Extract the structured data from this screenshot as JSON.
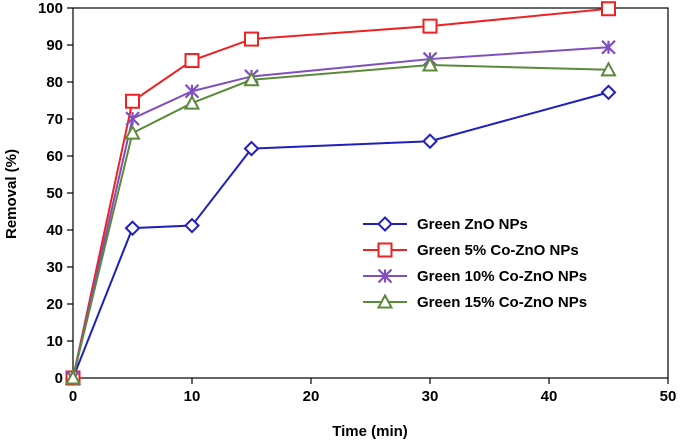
{
  "chart_data": {
    "type": "line",
    "title": "",
    "xlabel": "Time (min)",
    "ylabel": "Removal (%)",
    "xlim": [
      0,
      50
    ],
    "ylim": [
      0,
      100
    ],
    "xticks": [
      0,
      10,
      20,
      30,
      40,
      50
    ],
    "yticks": [
      0,
      10,
      20,
      30,
      40,
      50,
      60,
      70,
      80,
      90,
      100
    ],
    "grid": false,
    "legend_position": "center-right",
    "series": [
      {
        "name": "Green ZnO NPs",
        "color": "#1f1fbf",
        "marker": "diamond",
        "x": [
          0,
          5,
          10,
          15,
          30,
          45
        ],
        "y": [
          0,
          40.5,
          41.2,
          62.0,
          64.0,
          77.2
        ]
      },
      {
        "name": "Green 5% Co-ZnO NPs",
        "color": "#ee2222",
        "marker": "square",
        "x": [
          0,
          5,
          10,
          15,
          30,
          45
        ],
        "y": [
          0,
          74.8,
          85.8,
          91.6,
          95.1,
          99.8
        ]
      },
      {
        "name": "Green 10% Co-ZnO NPs",
        "color": "#7f4fbf",
        "marker": "star",
        "x": [
          0,
          5,
          10,
          15,
          30,
          45
        ],
        "y": [
          0,
          70.1,
          77.5,
          81.5,
          86.2,
          89.4
        ]
      },
      {
        "name": "Green 15% Co-ZnO NPs",
        "color": "#5a8a3a",
        "marker": "triangle",
        "x": [
          0,
          5,
          10,
          15,
          30,
          45
        ],
        "y": [
          0,
          66.2,
          74.3,
          80.6,
          84.6,
          83.3
        ]
      }
    ]
  }
}
